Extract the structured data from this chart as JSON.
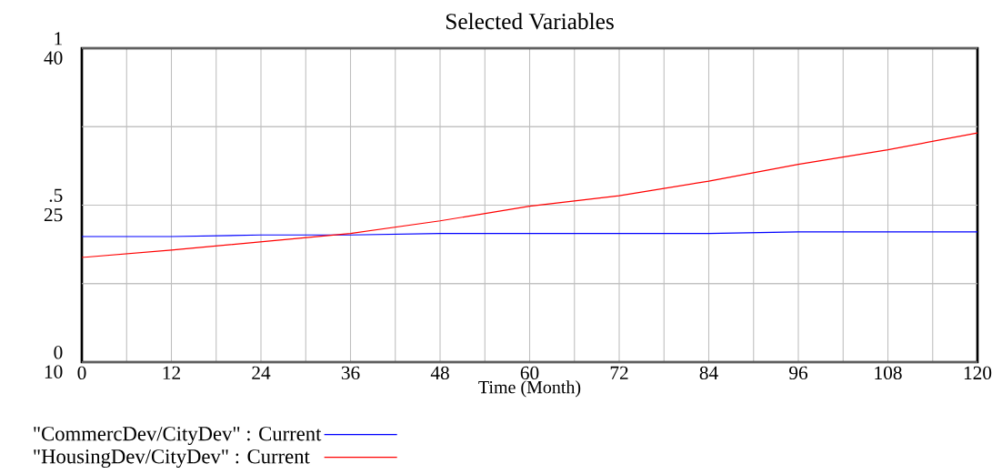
{
  "chart_data": {
    "type": "line",
    "title": "Selected Variables",
    "xlabel": "Time (Month)",
    "x": [
      0,
      12,
      24,
      36,
      48,
      60,
      72,
      84,
      96,
      108,
      120
    ],
    "series": [
      {
        "name": "\"CommercDev/CityDev\" : Current",
        "color": "#0000ff",
        "values": [
          0.4,
          0.4,
          0.405,
          0.405,
          0.41,
          0.41,
          0.41,
          0.41,
          0.415,
          0.415,
          0.415
        ]
      },
      {
        "name": "\"HousingDev/CityDev\" : Current",
        "color": "#ff0000",
        "axis": "y2",
        "values": [
          20.0,
          20.7,
          21.5,
          22.3,
          23.5,
          24.9,
          25.9,
          27.3,
          28.9,
          30.3,
          31.9
        ]
      }
    ],
    "xlim": [
      0,
      120
    ],
    "xticks": [
      0,
      {
        "value": 6,
        "label": null
      },
      12,
      {
        "value": 18,
        "label": null
      },
      24,
      {
        "value": 30,
        "label": null
      },
      36,
      {
        "value": 42,
        "label": null
      },
      48,
      {
        "value": 54,
        "label": null
      },
      60,
      {
        "value": 66,
        "label": null
      },
      72,
      {
        "value": 78,
        "label": null
      },
      84,
      {
        "value": 90,
        "label": null
      },
      96,
      {
        "value": 102,
        "label": null
      },
      108,
      {
        "value": 114,
        "label": null
      },
      120
    ],
    "ylim": [
      0,
      1
    ],
    "yticks": [
      {
        "value": 0,
        "label": "0"
      },
      {
        "value": 0.25,
        "label": null
      },
      {
        "value": 0.5,
        "label": ".5"
      },
      {
        "value": 0.75,
        "label": null
      },
      {
        "value": 1,
        "label": "1"
      }
    ],
    "y2lim": [
      10,
      40
    ],
    "y2ticks": [
      10,
      {
        "value": 17.5,
        "label": null
      },
      25,
      {
        "value": 32.5,
        "label": null
      },
      40
    ],
    "grid": true,
    "legend": "bottom",
    "marker": "none",
    "line_style": "solid"
  }
}
